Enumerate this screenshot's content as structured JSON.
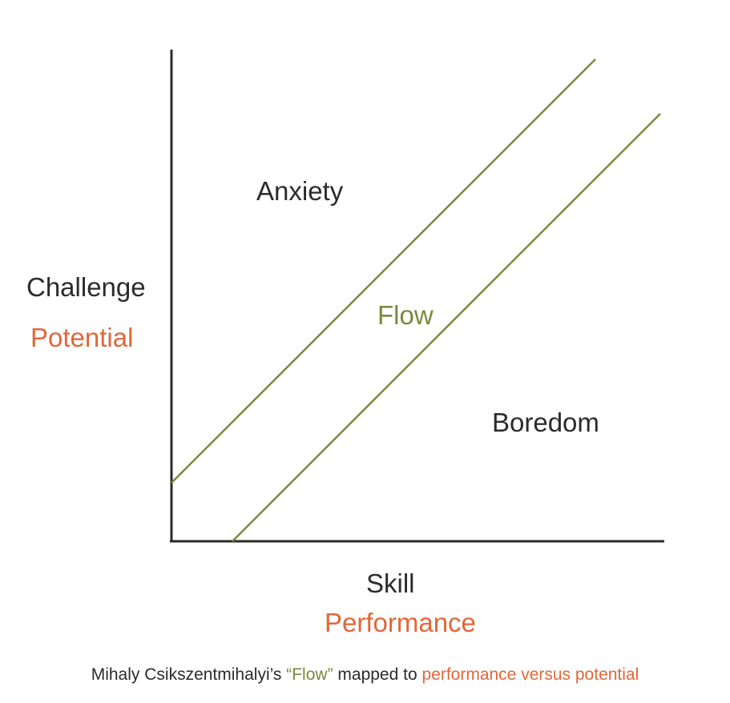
{
  "regions": {
    "anxiety": "Anxiety",
    "flow": "Flow",
    "boredom": "Boredom"
  },
  "y_axis": {
    "label": "Challenge",
    "sublabel": "Potential"
  },
  "x_axis": {
    "label": "Skill",
    "sublabel": "Performance"
  },
  "caption": {
    "part1": "Mihaly Csikszentmihalyi’s ",
    "part2": "“Flow”",
    "part3": " mapped to ",
    "part4": "performance versus potential"
  },
  "colors": {
    "axis": "#2b2b2b",
    "flow_channel": "#7a8a3c",
    "accent": "#e0673a",
    "text": "#2b2b2b"
  }
}
